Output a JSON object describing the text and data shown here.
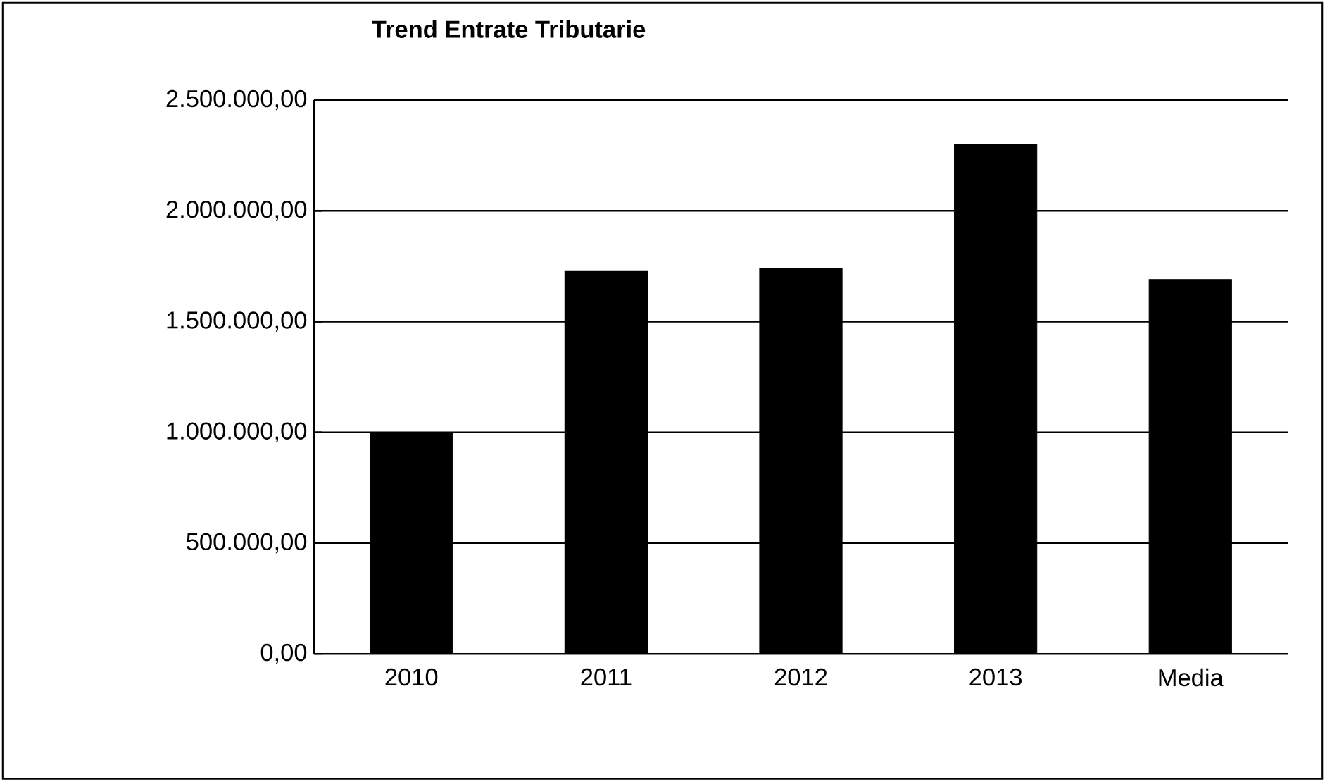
{
  "chart_data": {
    "type": "bar",
    "title": "Trend Entrate Tributarie",
    "categories": [
      "2010",
      "2011",
      "2012",
      "2013",
      "Media"
    ],
    "values": [
      1000000,
      1730000,
      1740000,
      2300000,
      1690000
    ],
    "color": "#000000",
    "ylim": [
      0,
      2500000
    ],
    "yticks": [
      {
        "value": 0,
        "label": "0,00"
      },
      {
        "value": 500000,
        "label": "500.000,00"
      },
      {
        "value": 1000000,
        "label": "1.000.000,00"
      },
      {
        "value": 1500000,
        "label": "1.500.000,00"
      },
      {
        "value": 2000000,
        "label": "2.000.000,00"
      },
      {
        "value": 2500000,
        "label": "2.500.000,00"
      }
    ],
    "grid": "y"
  }
}
